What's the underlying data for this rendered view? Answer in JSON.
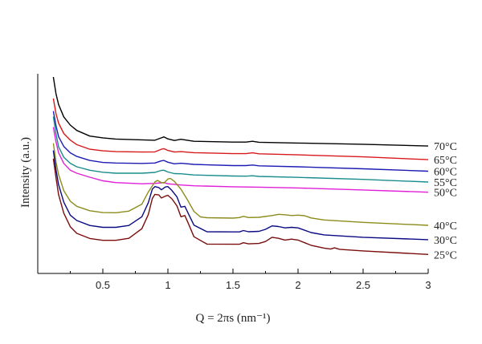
{
  "chart_data": {
    "type": "line",
    "title": "",
    "xlabel": "Q = 2πs (nm⁻¹)",
    "ylabel": "Intensity (a.u.)",
    "xlim": [
      0.0,
      3.0
    ],
    "ylim": [
      0,
      100
    ],
    "x_ticks": [
      "0.5",
      "1",
      "1.5",
      "2",
      "2.5",
      "3"
    ],
    "grid": false,
    "legend": "labels at right end of each curve",
    "series": [
      {
        "name": "70°C",
        "color": "#000000",
        "points": [
          [
            0.12,
            98.4
          ],
          [
            0.14,
            90
          ],
          [
            0.16,
            84.6
          ],
          [
            0.2,
            78.4
          ],
          [
            0.25,
            74.3
          ],
          [
            0.3,
            71.6
          ],
          [
            0.4,
            68.8
          ],
          [
            0.5,
            67.9
          ],
          [
            0.6,
            67.3
          ],
          [
            0.8,
            66.9
          ],
          [
            0.9,
            66.7
          ],
          [
            0.95,
            67.9
          ],
          [
            0.97,
            68.4
          ],
          [
            1.0,
            67.4
          ],
          [
            1.05,
            66.6
          ],
          [
            1.1,
            67.2
          ],
          [
            1.2,
            66.2
          ],
          [
            1.5,
            65.8
          ],
          [
            1.6,
            65.8
          ],
          [
            1.65,
            66.2
          ],
          [
            1.7,
            65.7
          ],
          [
            2.0,
            65.3
          ],
          [
            2.5,
            64.7
          ],
          [
            3.0,
            63.8
          ]
        ]
      },
      {
        "name": "65°C",
        "color": "#d7191c",
        "points": [
          [
            0.12,
            87.6
          ],
          [
            0.14,
            80
          ],
          [
            0.16,
            75.3
          ],
          [
            0.2,
            70.1
          ],
          [
            0.25,
            66.8
          ],
          [
            0.3,
            64.5
          ],
          [
            0.4,
            62.2
          ],
          [
            0.5,
            61.4
          ],
          [
            0.6,
            61
          ],
          [
            0.8,
            60.8
          ],
          [
            0.9,
            60.9
          ],
          [
            0.95,
            62.2
          ],
          [
            0.97,
            62.5
          ],
          [
            1.0,
            61.6
          ],
          [
            1.05,
            60.8
          ],
          [
            1.1,
            61
          ],
          [
            1.2,
            60.5
          ],
          [
            1.5,
            60
          ],
          [
            1.6,
            60
          ],
          [
            1.65,
            60.4
          ],
          [
            1.7,
            59.9
          ],
          [
            2.0,
            59.4
          ],
          [
            2.5,
            58.4
          ],
          [
            3.0,
            57.0
          ]
        ]
      },
      {
        "name": "60°C",
        "color": "#1c1cb4",
        "points": [
          [
            0.12,
            81.3
          ],
          [
            0.14,
            74
          ],
          [
            0.16,
            68.5
          ],
          [
            0.2,
            63.6
          ],
          [
            0.25,
            60.4
          ],
          [
            0.3,
            58.6
          ],
          [
            0.4,
            56.6
          ],
          [
            0.5,
            55.6
          ],
          [
            0.6,
            55.3
          ],
          [
            0.8,
            55.1
          ],
          [
            0.9,
            55.3
          ],
          [
            0.95,
            56.4
          ],
          [
            0.97,
            56.6
          ],
          [
            1.0,
            55.7
          ],
          [
            1.05,
            54.9
          ],
          [
            1.1,
            55.2
          ],
          [
            1.2,
            54.6
          ],
          [
            1.5,
            54
          ],
          [
            1.6,
            54
          ],
          [
            1.65,
            54.3
          ],
          [
            1.7,
            53.9
          ],
          [
            2.0,
            53.4
          ],
          [
            2.5,
            52.4
          ],
          [
            3.0,
            51.2
          ]
        ]
      },
      {
        "name": "55°C",
        "color": "#1a8c8c",
        "points": [
          [
            0.12,
            78.6
          ],
          [
            0.14,
            70
          ],
          [
            0.16,
            63.5
          ],
          [
            0.2,
            58.2
          ],
          [
            0.25,
            55.2
          ],
          [
            0.3,
            53.4
          ],
          [
            0.4,
            51.7
          ],
          [
            0.5,
            50.7
          ],
          [
            0.6,
            50.2
          ],
          [
            0.8,
            50.2
          ],
          [
            0.9,
            50.6
          ],
          [
            0.95,
            51.6
          ],
          [
            0.97,
            51.7
          ],
          [
            1.0,
            50.8
          ],
          [
            1.05,
            50
          ],
          [
            1.1,
            49.9
          ],
          [
            1.2,
            49.3
          ],
          [
            1.5,
            48.8
          ],
          [
            1.6,
            48.7
          ],
          [
            1.65,
            48.9
          ],
          [
            1.7,
            48.6
          ],
          [
            2.0,
            48.1
          ],
          [
            2.5,
            47.1
          ],
          [
            3.0,
            45.8
          ]
        ]
      },
      {
        "name": "50°C",
        "color": "#e01fd8",
        "points": [
          [
            0.12,
            73.3
          ],
          [
            0.14,
            66
          ],
          [
            0.16,
            60.5
          ],
          [
            0.2,
            55.1
          ],
          [
            0.25,
            51.7
          ],
          [
            0.3,
            50.2
          ],
          [
            0.4,
            48.2
          ],
          [
            0.5,
            46.4
          ],
          [
            0.6,
            45.5
          ],
          [
            0.8,
            44.9
          ],
          [
            0.9,
            45.1
          ],
          [
            0.95,
            45.4
          ],
          [
            0.97,
            45.5
          ],
          [
            1.0,
            44.9
          ],
          [
            1.1,
            44.3
          ],
          [
            1.2,
            43.9
          ],
          [
            1.5,
            43.4
          ],
          [
            1.7,
            43.2
          ],
          [
            2.0,
            42.8
          ],
          [
            2.5,
            41.8
          ],
          [
            3.0,
            40.7
          ]
        ]
      },
      {
        "name": "40°C",
        "color": "#8c8c1c",
        "points": [
          [
            0.12,
            65.2
          ],
          [
            0.14,
            56
          ],
          [
            0.16,
            49.5
          ],
          [
            0.2,
            41.5
          ],
          [
            0.25,
            36.2
          ],
          [
            0.3,
            33.6
          ],
          [
            0.4,
            31.4
          ],
          [
            0.5,
            30.5
          ],
          [
            0.6,
            30.4
          ],
          [
            0.7,
            31.2
          ],
          [
            0.8,
            34.7
          ],
          [
            0.85,
            40.9
          ],
          [
            0.9,
            45.8
          ],
          [
            0.92,
            46.6
          ],
          [
            0.95,
            45.5
          ],
          [
            0.97,
            45.3
          ],
          [
            1.0,
            47.3
          ],
          [
            1.02,
            47.6
          ],
          [
            1.05,
            46.1
          ],
          [
            1.1,
            42.2
          ],
          [
            1.15,
            36.9
          ],
          [
            1.2,
            31.1
          ],
          [
            1.25,
            28.3
          ],
          [
            1.3,
            27.9
          ],
          [
            1.5,
            27.7
          ],
          [
            1.55,
            28
          ],
          [
            1.58,
            28.6
          ],
          [
            1.62,
            28
          ],
          [
            1.7,
            28.1
          ],
          [
            1.8,
            29
          ],
          [
            1.85,
            29.6
          ],
          [
            1.9,
            29.4
          ],
          [
            1.95,
            29
          ],
          [
            2.0,
            29.2
          ],
          [
            2.05,
            28.9
          ],
          [
            2.1,
            27.8
          ],
          [
            2.2,
            26.8
          ],
          [
            2.5,
            25.6
          ],
          [
            3.0,
            24.1
          ]
        ]
      },
      {
        "name": "30°C",
        "color": "#0a0a82",
        "points": [
          [
            0.12,
            61.6
          ],
          [
            0.14,
            52
          ],
          [
            0.16,
            44.5
          ],
          [
            0.2,
            35.7
          ],
          [
            0.25,
            29.2
          ],
          [
            0.3,
            26.5
          ],
          [
            0.4,
            24
          ],
          [
            0.5,
            23.1
          ],
          [
            0.6,
            23.1
          ],
          [
            0.7,
            24
          ],
          [
            0.8,
            28.4
          ],
          [
            0.85,
            35.5
          ],
          [
            0.88,
            42.2
          ],
          [
            0.9,
            43.5
          ],
          [
            0.93,
            43
          ],
          [
            0.95,
            41.9
          ],
          [
            0.98,
            43.3
          ],
          [
            1.0,
            43.5
          ],
          [
            1.03,
            41.6
          ],
          [
            1.07,
            38.3
          ],
          [
            1.1,
            33.2
          ],
          [
            1.13,
            33.6
          ],
          [
            1.16,
            29.6
          ],
          [
            1.2,
            24.2
          ],
          [
            1.3,
            20.9
          ],
          [
            1.5,
            20.8
          ],
          [
            1.55,
            20.8
          ],
          [
            1.58,
            21.5
          ],
          [
            1.62,
            20.9
          ],
          [
            1.7,
            21.1
          ],
          [
            1.75,
            22.1
          ],
          [
            1.8,
            23.8
          ],
          [
            1.85,
            23.5
          ],
          [
            1.9,
            22.8
          ],
          [
            1.95,
            23.1
          ],
          [
            2.0,
            22.8
          ],
          [
            2.1,
            20.5
          ],
          [
            2.2,
            19.3
          ],
          [
            2.5,
            18.1
          ],
          [
            3.0,
            16.9
          ]
        ]
      },
      {
        "name": "25°C",
        "color": "#7a0d0d",
        "points": [
          [
            0.12,
            57.5
          ],
          [
            0.14,
            48
          ],
          [
            0.16,
            39.5
          ],
          [
            0.2,
            30.2
          ],
          [
            0.25,
            23.4
          ],
          [
            0.3,
            20.1
          ],
          [
            0.4,
            17.5
          ],
          [
            0.5,
            16.6
          ],
          [
            0.6,
            16.6
          ],
          [
            0.7,
            17.6
          ],
          [
            0.8,
            22.4
          ],
          [
            0.85,
            29.6
          ],
          [
            0.88,
            37.5
          ],
          [
            0.9,
            39.6
          ],
          [
            0.93,
            39.3
          ],
          [
            0.95,
            37.8
          ],
          [
            0.98,
            38.7
          ],
          [
            1.0,
            39.1
          ],
          [
            1.03,
            37.4
          ],
          [
            1.07,
            33.8
          ],
          [
            1.1,
            28.4
          ],
          [
            1.13,
            29
          ],
          [
            1.16,
            24.6
          ],
          [
            1.2,
            18.4
          ],
          [
            1.3,
            14.7
          ],
          [
            1.5,
            14.6
          ],
          [
            1.55,
            14.6
          ],
          [
            1.58,
            15.4
          ],
          [
            1.62,
            14.8
          ],
          [
            1.7,
            15
          ],
          [
            1.75,
            16
          ],
          [
            1.8,
            18.1
          ],
          [
            1.85,
            17.6
          ],
          [
            1.9,
            16.7
          ],
          [
            1.95,
            17.2
          ],
          [
            2.0,
            16.7
          ],
          [
            2.1,
            14.1
          ],
          [
            2.2,
            12.7
          ],
          [
            2.25,
            12.2
          ],
          [
            2.28,
            12.8
          ],
          [
            2.32,
            12.1
          ],
          [
            2.5,
            11.3
          ],
          [
            3.0,
            9.5
          ]
        ]
      }
    ]
  }
}
